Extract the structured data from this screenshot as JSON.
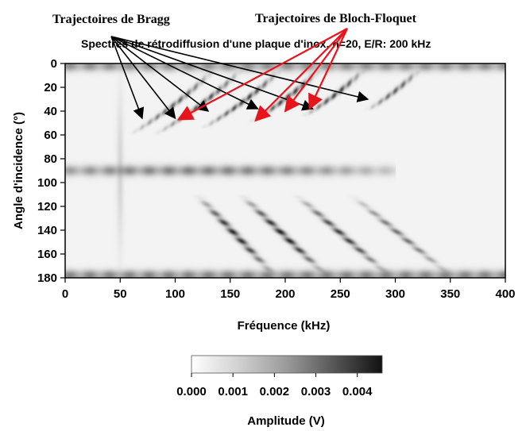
{
  "chart_data": {
    "type": "heatmap",
    "title": "Spectres de rétrodiffusion d'une plaque d'inox, n=20, E/R: 200 kHz",
    "xlabel": "Fréquence (kHz)",
    "ylabel": "Angle d'incidence (°)",
    "xlim": [
      0,
      400
    ],
    "ylim": [
      180,
      0
    ],
    "xticks": [
      0,
      50,
      100,
      150,
      200,
      250,
      300,
      350,
      400
    ],
    "yticks": [
      0,
      20,
      40,
      60,
      80,
      100,
      120,
      140,
      160,
      180
    ],
    "colorbar": {
      "label": "Amplitude (V)",
      "ticks": [
        "0.000",
        "0.001",
        "0.002",
        "0.003",
        "0.004"
      ],
      "range": [
        0,
        0.0046
      ],
      "colormap": "white-to-black"
    },
    "annotations": [
      {
        "text": "Trajectoires de Bragg",
        "color": "#000000",
        "arrow_targets": [
          [
            70,
            46
          ],
          [
            100,
            46
          ],
          [
            130,
            40
          ],
          [
            175,
            38
          ],
          [
            225,
            38
          ],
          [
            275,
            30
          ]
        ]
      },
      {
        "text": "Trajectoires de Bloch-Floquet",
        "color": "#e8141b",
        "arrow_targets": [
          [
            103,
            47
          ],
          [
            173,
            48
          ],
          [
            200,
            40
          ],
          [
            222,
            38
          ]
        ]
      }
    ],
    "features": {
      "bragg_curves": [
        {
          "f0": 85,
          "k": 50,
          "amp": 0.003,
          "from_angle": 5,
          "to_angle": 60
        },
        {
          "f0": 110,
          "k": 55,
          "amp": 0.0034,
          "from_angle": 5,
          "to_angle": 60
        },
        {
          "f0": 150,
          "k": 58,
          "amp": 0.0036,
          "from_angle": 5,
          "to_angle": 55
        },
        {
          "f0": 190,
          "k": 60,
          "amp": 0.0038,
          "from_angle": 5,
          "to_angle": 50
        },
        {
          "f0": 235,
          "k": 62,
          "amp": 0.0036,
          "from_angle": 5,
          "to_angle": 45
        },
        {
          "f0": 290,
          "k": 66,
          "amp": 0.003,
          "from_angle": 5,
          "to_angle": 40
        }
      ],
      "mirror_curves": [
        {
          "f0": 160,
          "k": 50,
          "amp": 0.004
        },
        {
          "f0": 200,
          "k": 55,
          "amp": 0.0042
        },
        {
          "f0": 250,
          "k": 60,
          "amp": 0.0036
        },
        {
          "f0": 300,
          "k": 64,
          "amp": 0.0026
        }
      ],
      "horizontal_bands": [
        {
          "angle": 90,
          "amp": 0.0022,
          "f_start": 0,
          "f_end": 300
        },
        {
          "angle": 2,
          "amp": 0.002,
          "f_start": 0,
          "f_end": 400
        },
        {
          "angle": 178,
          "amp": 0.0022,
          "f_start": 0,
          "f_end": 400
        }
      ]
    }
  }
}
